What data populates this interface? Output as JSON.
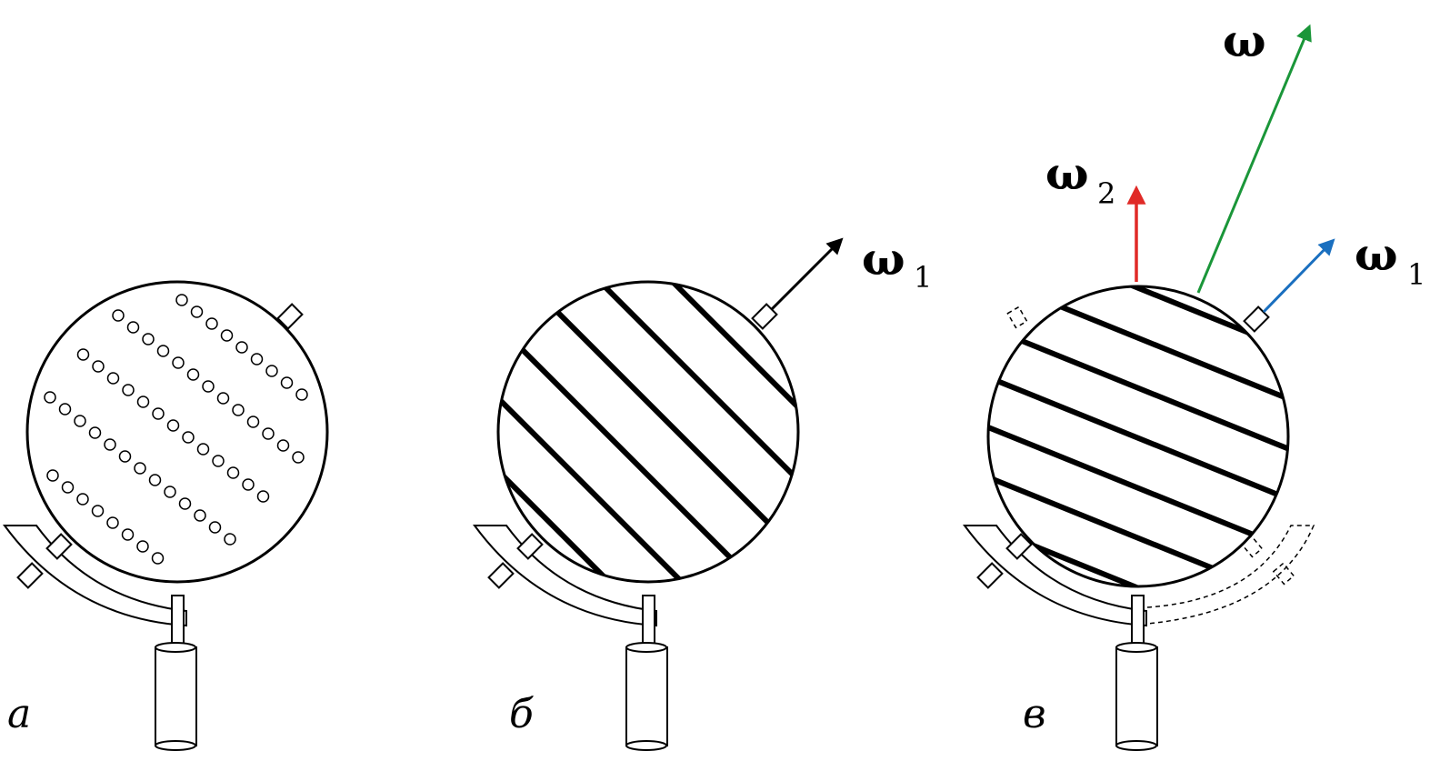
{
  "panels": [
    {
      "label": "а"
    },
    {
      "label": "б",
      "vector": {
        "symbol": "ω",
        "subscript": "1"
      }
    },
    {
      "label": "в",
      "vectors": [
        {
          "symbol": "ω",
          "subscript": "",
          "color": "#1a9639"
        },
        {
          "symbol": "ω",
          "subscript": "2",
          "color": "#e02a27"
        },
        {
          "symbol": "ω",
          "subscript": "1",
          "color": "#1a6fbf"
        }
      ]
    }
  ],
  "colors": {
    "line": "#000000",
    "green": "#1a9639",
    "red": "#e02a27",
    "blue": "#1a6fbf"
  }
}
